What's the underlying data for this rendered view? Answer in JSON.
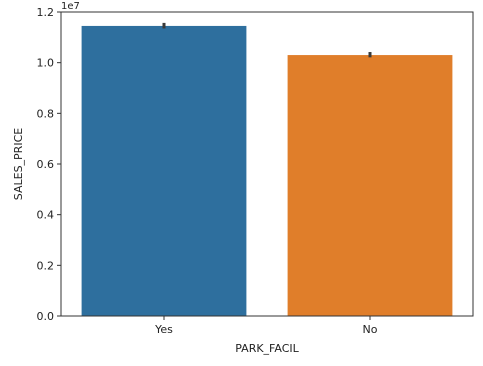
{
  "chart_data": {
    "type": "bar",
    "categories": [
      "Yes",
      "No"
    ],
    "values": [
      11450000,
      10300000
    ],
    "error_bars": [
      [
        11350000,
        11570000
      ],
      [
        10210000,
        10420000
      ]
    ],
    "colors": [
      "#2e6f9e",
      "#e07e2a"
    ],
    "xlabel": "PARK_FACIL",
    "ylabel": "SALES_PRICE",
    "ylim": [
      0,
      12000000
    ],
    "yticks": [
      0.0,
      0.2,
      0.4,
      0.6,
      0.8,
      1.0,
      1.2
    ],
    "ytick_labels": [
      "0.0",
      "0.2",
      "0.4",
      "0.6",
      "0.8",
      "1.0",
      "1.2"
    ],
    "scale_label": "1e7",
    "scale_factor": 10000000,
    "grid": false,
    "legend": "none"
  }
}
